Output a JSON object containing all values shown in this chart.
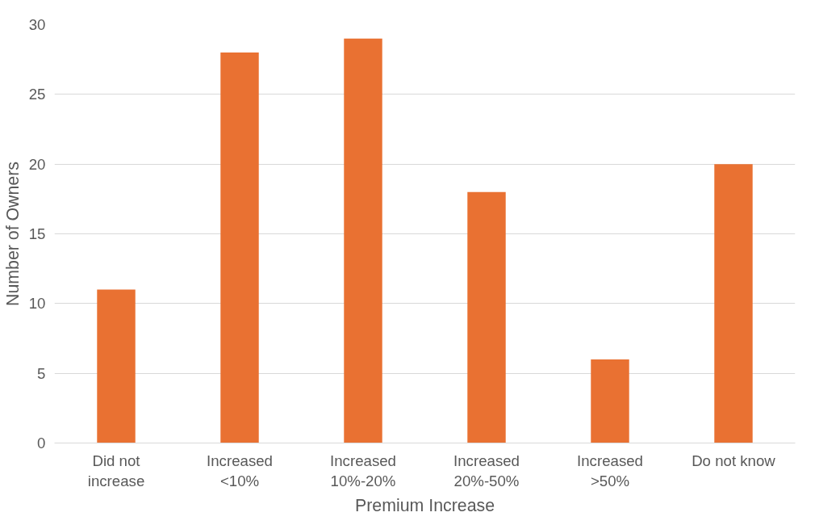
{
  "chart_data": {
    "type": "bar",
    "xlabel": "Premium Increase",
    "ylabel": "Number of Owners",
    "categories": [
      "Did not\nincrease",
      "Increased\n<10%",
      "Increased\n10%-20%",
      "Increased\n20%-50%",
      "Increased\n>50%",
      "Do not know"
    ],
    "values": [
      11,
      28,
      29,
      18,
      6,
      20
    ],
    "color": "#e97132",
    "ylim": [
      0,
      30
    ],
    "yticks": [
      0,
      5,
      10,
      15,
      20,
      25,
      30
    ],
    "grid": "y"
  }
}
